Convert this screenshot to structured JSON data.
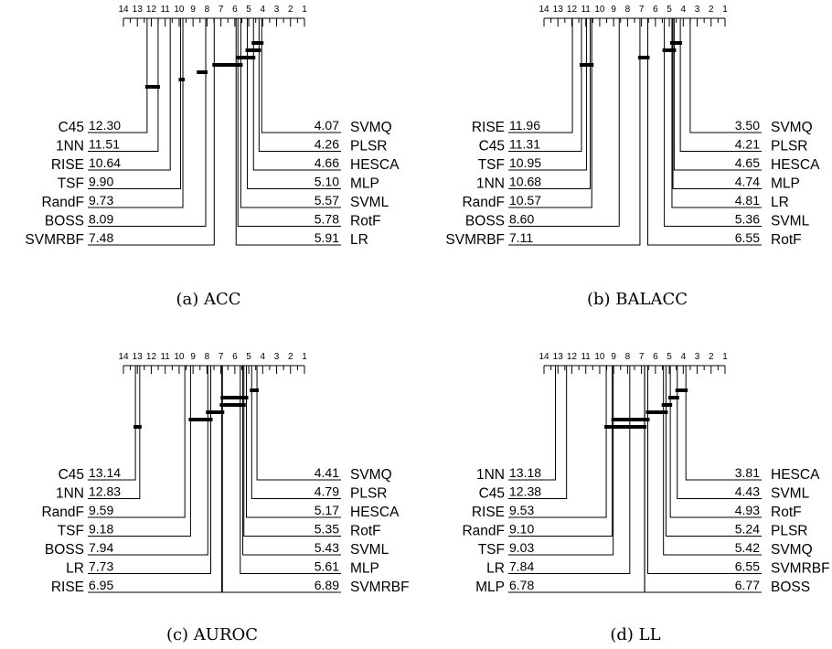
{
  "panels": [
    {
      "caption": "(a) ACC",
      "ticks": [
        "14",
        "13",
        "12",
        "11",
        "10",
        "9",
        "8",
        "7",
        "6",
        "5",
        "4",
        "3",
        "2",
        "1"
      ],
      "left": [
        {
          "name": "C45",
          "value": "12.30",
          "rank": 12.3
        },
        {
          "name": "1NN",
          "value": "11.51",
          "rank": 11.51
        },
        {
          "name": "RISE",
          "value": "10.64",
          "rank": 10.64
        },
        {
          "name": "TSF",
          "value": "9.90",
          "rank": 9.9
        },
        {
          "name": "RandF",
          "value": "9.73",
          "rank": 9.73
        },
        {
          "name": "BOSS",
          "value": "8.09",
          "rank": 8.09
        },
        {
          "name": "SVMRBF",
          "value": "7.48",
          "rank": 7.48
        }
      ],
      "right": [
        {
          "name": "SVMQ",
          "value": "4.07",
          "rank": 4.07
        },
        {
          "name": "PLSR",
          "value": "4.26",
          "rank": 4.26
        },
        {
          "name": "HESCA",
          "value": "4.66",
          "rank": 4.66
        },
        {
          "name": "MLP",
          "value": "5.10",
          "rank": 5.1
        },
        {
          "name": "SVML",
          "value": "5.57",
          "rank": 5.57
        },
        {
          "name": "RotF",
          "value": "5.78",
          "rank": 5.78
        },
        {
          "name": "LR",
          "value": "5.91",
          "rank": 5.91
        }
      ],
      "cliques": [
        [
          4.07,
          4.66
        ],
        [
          4.26,
          5.1
        ],
        [
          4.66,
          5.78
        ],
        [
          5.57,
          7.48
        ],
        [
          8.09,
          8.6
        ],
        [
          9.73,
          9.9
        ],
        [
          11.51,
          12.3
        ]
      ]
    },
    {
      "caption": "(b) BALACC",
      "ticks": [
        "14",
        "13",
        "12",
        "11",
        "10",
        "9",
        "8",
        "7",
        "6",
        "5",
        "4",
        "3",
        "2",
        "1"
      ],
      "left": [
        {
          "name": "RISE",
          "value": "11.96",
          "rank": 11.96
        },
        {
          "name": "C45",
          "value": "11.31",
          "rank": 11.31
        },
        {
          "name": "TSF",
          "value": "10.95",
          "rank": 10.95
        },
        {
          "name": "1NN",
          "value": "10.68",
          "rank": 10.68
        },
        {
          "name": "RandF",
          "value": "10.57",
          "rank": 10.57
        },
        {
          "name": "BOSS",
          "value": "8.60",
          "rank": 8.6
        },
        {
          "name": "SVMRBF",
          "value": "7.11",
          "rank": 7.11
        }
      ],
      "right": [
        {
          "name": "SVMQ",
          "value": "3.50",
          "rank": 3.5
        },
        {
          "name": "PLSR",
          "value": "4.21",
          "rank": 4.21
        },
        {
          "name": "HESCA",
          "value": "4.65",
          "rank": 4.65
        },
        {
          "name": "MLP",
          "value": "4.74",
          "rank": 4.74
        },
        {
          "name": "LR",
          "value": "4.81",
          "rank": 4.81
        },
        {
          "name": "SVML",
          "value": "5.36",
          "rank": 5.36
        },
        {
          "name": "RotF",
          "value": "6.55",
          "rank": 6.55
        }
      ],
      "cliques": [
        [
          4.21,
          4.81
        ],
        [
          4.65,
          5.36
        ],
        [
          6.55,
          7.11
        ],
        [
          10.57,
          11.31
        ]
      ]
    },
    {
      "caption": "(c) AUROC",
      "ticks": [
        "14",
        "13",
        "12",
        "11",
        "10",
        "9",
        "8",
        "7",
        "6",
        "5",
        "4",
        "3",
        "2",
        "1"
      ],
      "left": [
        {
          "name": "C45",
          "value": "13.14",
          "rank": 13.14
        },
        {
          "name": "1NN",
          "value": "12.83",
          "rank": 12.83
        },
        {
          "name": "RandF",
          "value": "9.59",
          "rank": 9.59
        },
        {
          "name": "TSF",
          "value": "9.18",
          "rank": 9.18
        },
        {
          "name": "BOSS",
          "value": "7.94",
          "rank": 7.94
        },
        {
          "name": "LR",
          "value": "7.73",
          "rank": 7.73
        },
        {
          "name": "RISE",
          "value": "6.95",
          "rank": 6.95
        }
      ],
      "right": [
        {
          "name": "SVMQ",
          "value": "4.41",
          "rank": 4.41
        },
        {
          "name": "PLSR",
          "value": "4.79",
          "rank": 4.79
        },
        {
          "name": "HESCA",
          "value": "5.17",
          "rank": 5.17
        },
        {
          "name": "RotF",
          "value": "5.35",
          "rank": 5.35
        },
        {
          "name": "SVML",
          "value": "5.43",
          "rank": 5.43
        },
        {
          "name": "MLP",
          "value": "5.61",
          "rank": 5.61
        },
        {
          "name": "SVMRBF",
          "value": "6.89",
          "rank": 6.89
        }
      ],
      "cliques": [
        [
          4.41,
          4.79
        ],
        [
          5.17,
          6.89
        ],
        [
          5.35,
          6.95
        ],
        [
          6.89,
          7.94
        ],
        [
          7.73,
          9.18
        ],
        [
          12.83,
          13.14
        ]
      ]
    },
    {
      "caption": "(d) LL",
      "ticks": [
        "14",
        "13",
        "12",
        "11",
        "10",
        "9",
        "8",
        "7",
        "6",
        "5",
        "4",
        "3",
        "2",
        "1"
      ],
      "left": [
        {
          "name": "1NN",
          "value": "13.18",
          "rank": 13.18
        },
        {
          "name": "C45",
          "value": "12.38",
          "rank": 12.38
        },
        {
          "name": "RISE",
          "value": "9.53",
          "rank": 9.53
        },
        {
          "name": "RandF",
          "value": "9.10",
          "rank": 9.1
        },
        {
          "name": "TSF",
          "value": "9.03",
          "rank": 9.03
        },
        {
          "name": "LR",
          "value": "7.84",
          "rank": 7.84
        },
        {
          "name": "MLP",
          "value": "6.78",
          "rank": 6.78
        }
      ],
      "right": [
        {
          "name": "HESCA",
          "value": "3.81",
          "rank": 3.81
        },
        {
          "name": "SVML",
          "value": "4.43",
          "rank": 4.43
        },
        {
          "name": "RotF",
          "value": "4.93",
          "rank": 4.93
        },
        {
          "name": "PLSR",
          "value": "5.24",
          "rank": 5.24
        },
        {
          "name": "SVMQ",
          "value": "5.42",
          "rank": 5.42
        },
        {
          "name": "SVMRBF",
          "value": "6.55",
          "rank": 6.55
        },
        {
          "name": "BOSS",
          "value": "6.77",
          "rank": 6.77
        }
      ],
      "cliques": [
        [
          3.81,
          4.43
        ],
        [
          4.43,
          4.93
        ],
        [
          4.93,
          5.42
        ],
        [
          5.24,
          6.55
        ],
        [
          6.55,
          9.03
        ],
        [
          6.77,
          9.53
        ]
      ]
    }
  ]
}
